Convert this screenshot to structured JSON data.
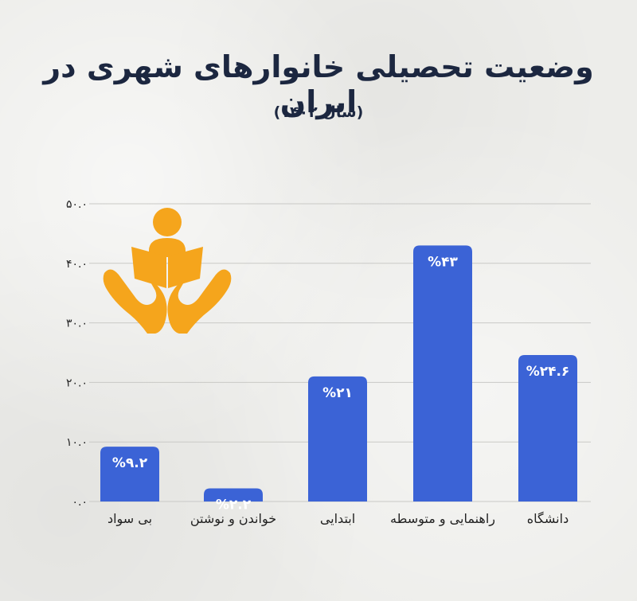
{
  "title": "وضعیت تحصیلی خانوارهای شهری در ایران",
  "subtitle": "(سال ۱۴۰۲)",
  "colors": {
    "bar": "#3b63d6",
    "title": "#1c2740",
    "logo": "#f5a51c",
    "grid": "#c9c9c6"
  },
  "logo_icon": "education-hands-icon",
  "chart_data": {
    "type": "bar",
    "categories": [
      "بی سواد",
      "خواندن و نوشتن",
      "ابتدایی",
      "راهنمایی و متوسطه",
      "دانشگاه"
    ],
    "values": [
      9.2,
      2.2,
      21,
      43,
      24.6
    ],
    "value_labels": [
      "%۹.۲",
      "%۲.۲",
      "%۲۱",
      "%۴۳",
      "%۲۴.۶"
    ],
    "ylim": [
      0,
      50
    ],
    "yticks": [
      0,
      10,
      20,
      30,
      40,
      50
    ],
    "ytick_labels": [
      "۰.۰",
      "۱۰.۰",
      "۲۰.۰",
      "۳۰.۰",
      "۴۰.۰",
      "۵۰.۰"
    ],
    "grid": true
  }
}
